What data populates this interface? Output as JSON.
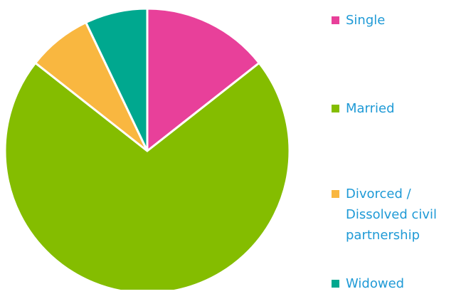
{
  "chart_data": {
    "type": "pie",
    "categories": [
      "Single",
      "Married",
      "Divorced / Dissolved civil partnership",
      "Widowed"
    ],
    "values": [
      14.4,
      71.2,
      7.3,
      7.1
    ],
    "colors": [
      "#e8409a",
      "#84bd00",
      "#f9b740",
      "#00a88f"
    ],
    "legend": "right"
  }
}
